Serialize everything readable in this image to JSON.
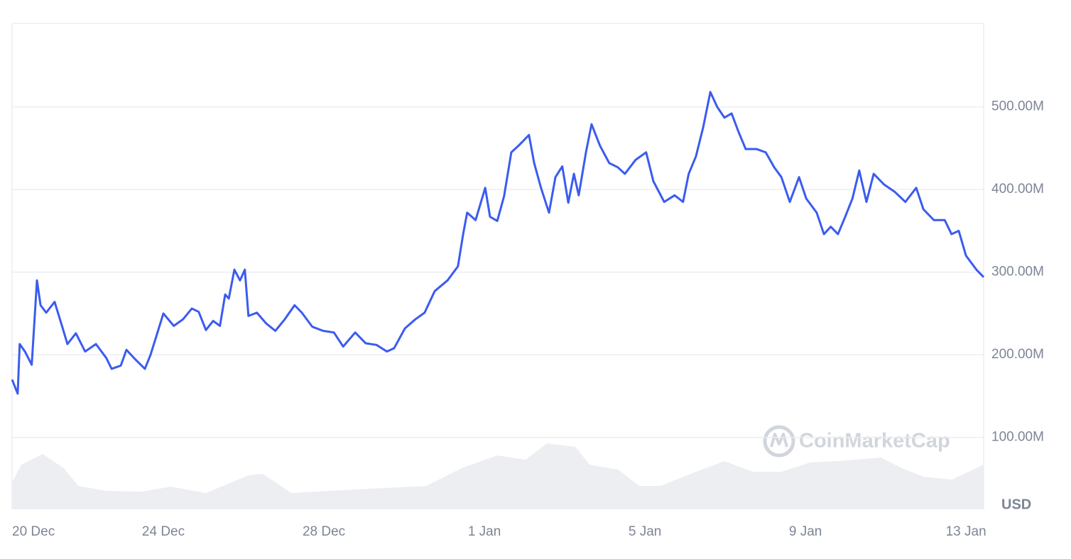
{
  "chart_data": {
    "type": "line",
    "watermark": "CoinMarketCap",
    "y_unit": "USD",
    "color": "#3b5bef",
    "volume_color": "#eceef2",
    "grid": true,
    "xlim": [
      0.23,
      24.44
    ],
    "xticks": [
      {
        "value": 0,
        "label": "20 Dec"
      },
      {
        "value": 4,
        "label": "24 Dec"
      },
      {
        "value": 8,
        "label": "28 Dec"
      },
      {
        "value": 12,
        "label": "1 Jan"
      },
      {
        "value": 16,
        "label": "5 Jan"
      },
      {
        "value": 20,
        "label": "9 Jan"
      },
      {
        "value": 24,
        "label": "13 Jan"
      }
    ],
    "ylim": [
      13,
      601
    ],
    "yticks": [
      {
        "value": 100,
        "label": "100.00M"
      },
      {
        "value": 200,
        "label": "200.00M"
      },
      {
        "value": 300,
        "label": "300.00M"
      },
      {
        "value": 400,
        "label": "400.00M"
      },
      {
        "value": 500,
        "label": "500.00M"
      }
    ],
    "x": [
      0.23,
      0.37,
      0.42,
      0.55,
      0.72,
      0.85,
      0.94,
      1.08,
      1.29,
      1.48,
      1.61,
      1.82,
      2.05,
      2.32,
      2.58,
      2.71,
      2.94,
      3.08,
      3.29,
      3.54,
      3.68,
      3.86,
      4.0,
      4.26,
      4.49,
      4.71,
      4.88,
      5.06,
      5.24,
      5.41,
      5.54,
      5.63,
      5.77,
      5.91,
      6.03,
      6.12,
      6.33,
      6.56,
      6.79,
      7.01,
      7.27,
      7.45,
      7.71,
      7.98,
      8.25,
      8.48,
      8.78,
      9.04,
      9.31,
      9.57,
      9.75,
      10.02,
      10.28,
      10.51,
      10.76,
      11.08,
      11.34,
      11.47,
      11.57,
      11.78,
      12.02,
      12.14,
      12.32,
      12.49,
      12.67,
      12.85,
      13.11,
      13.24,
      13.41,
      13.61,
      13.77,
      13.94,
      14.09,
      14.23,
      14.35,
      14.53,
      14.67,
      14.88,
      15.11,
      15.32,
      15.5,
      15.77,
      16.03,
      16.21,
      16.48,
      16.74,
      16.95,
      17.09,
      17.27,
      17.45,
      17.63,
      17.8,
      17.98,
      18.16,
      18.33,
      18.51,
      18.78,
      19.01,
      19.22,
      19.4,
      19.61,
      19.84,
      20.02,
      20.28,
      20.46,
      20.63,
      20.81,
      20.99,
      21.17,
      21.34,
      21.52,
      21.7,
      21.96,
      22.23,
      22.49,
      22.76,
      22.94,
      23.2,
      23.47,
      23.64,
      23.82,
      24.0,
      24.26,
      24.44
    ],
    "values": [
      170,
      153,
      213,
      204,
      188,
      290,
      260,
      251,
      264,
      234,
      213,
      226,
      204,
      213,
      196,
      183,
      187,
      206,
      195,
      183,
      200,
      228,
      250,
      235,
      243,
      256,
      252,
      230,
      241,
      235,
      273,
      268,
      303,
      290,
      303,
      247,
      251,
      238,
      229,
      242,
      260,
      251,
      234,
      229,
      227,
      210,
      227,
      214,
      212,
      204,
      208,
      232,
      243,
      251,
      277,
      290,
      307,
      346,
      372,
      363,
      402,
      367,
      362,
      392,
      445,
      453,
      466,
      432,
      402,
      372,
      415,
      428,
      384,
      419,
      393,
      445,
      479,
      453,
      432,
      427,
      419,
      436,
      445,
      410,
      385,
      393,
      385,
      419,
      440,
      475,
      518,
      500,
      487,
      492,
      470,
      449,
      449,
      445,
      427,
      415,
      385,
      415,
      389,
      372,
      346,
      355,
      346,
      367,
      389,
      423,
      385,
      419,
      406,
      397,
      385,
      402,
      376,
      363,
      363,
      346,
      350,
      320,
      303,
      294
    ],
    "volume": {
      "x": [
        0.23,
        0.46,
        0.99,
        1.52,
        1.88,
        2.58,
        3.47,
        4.18,
        5.06,
        6.12,
        6.48,
        7.19,
        8.78,
        10.55,
        11.43,
        12.32,
        13.03,
        13.56,
        14.27,
        14.62,
        15.33,
        15.86,
        16.39,
        17.27,
        17.98,
        18.69,
        19.4,
        20.11,
        20.81,
        21.88,
        22.41,
        22.94,
        23.65,
        24.44
      ],
      "values": [
        38,
        63,
        78,
        58,
        33,
        26,
        25,
        32,
        23,
        48,
        50,
        23,
        28,
        33,
        58,
        76,
        70,
        93,
        88,
        63,
        56,
        33,
        33,
        53,
        68,
        53,
        53,
        66,
        68,
        73,
        58,
        46,
        42,
        63
      ]
    }
  }
}
